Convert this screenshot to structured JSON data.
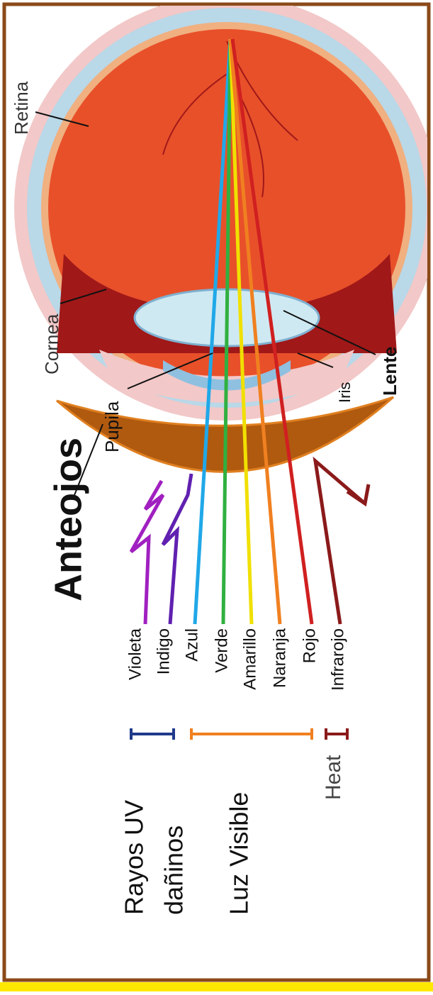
{
  "title": "Anteojos",
  "rays": [
    "Violeta",
    "Indigo",
    "Azul",
    "Verde",
    "Amarillo",
    "Naranja",
    "Rojo",
    "Infrarojo"
  ],
  "groups": [
    "Rayos UV",
    "dañinos",
    "Luz Visible",
    "Heat"
  ],
  "eye_labels": {
    "retina": "Retina",
    "cornea": "Cornea",
    "pupila": "Pupila",
    "lente": "Lente",
    "iris": "Iris"
  }
}
